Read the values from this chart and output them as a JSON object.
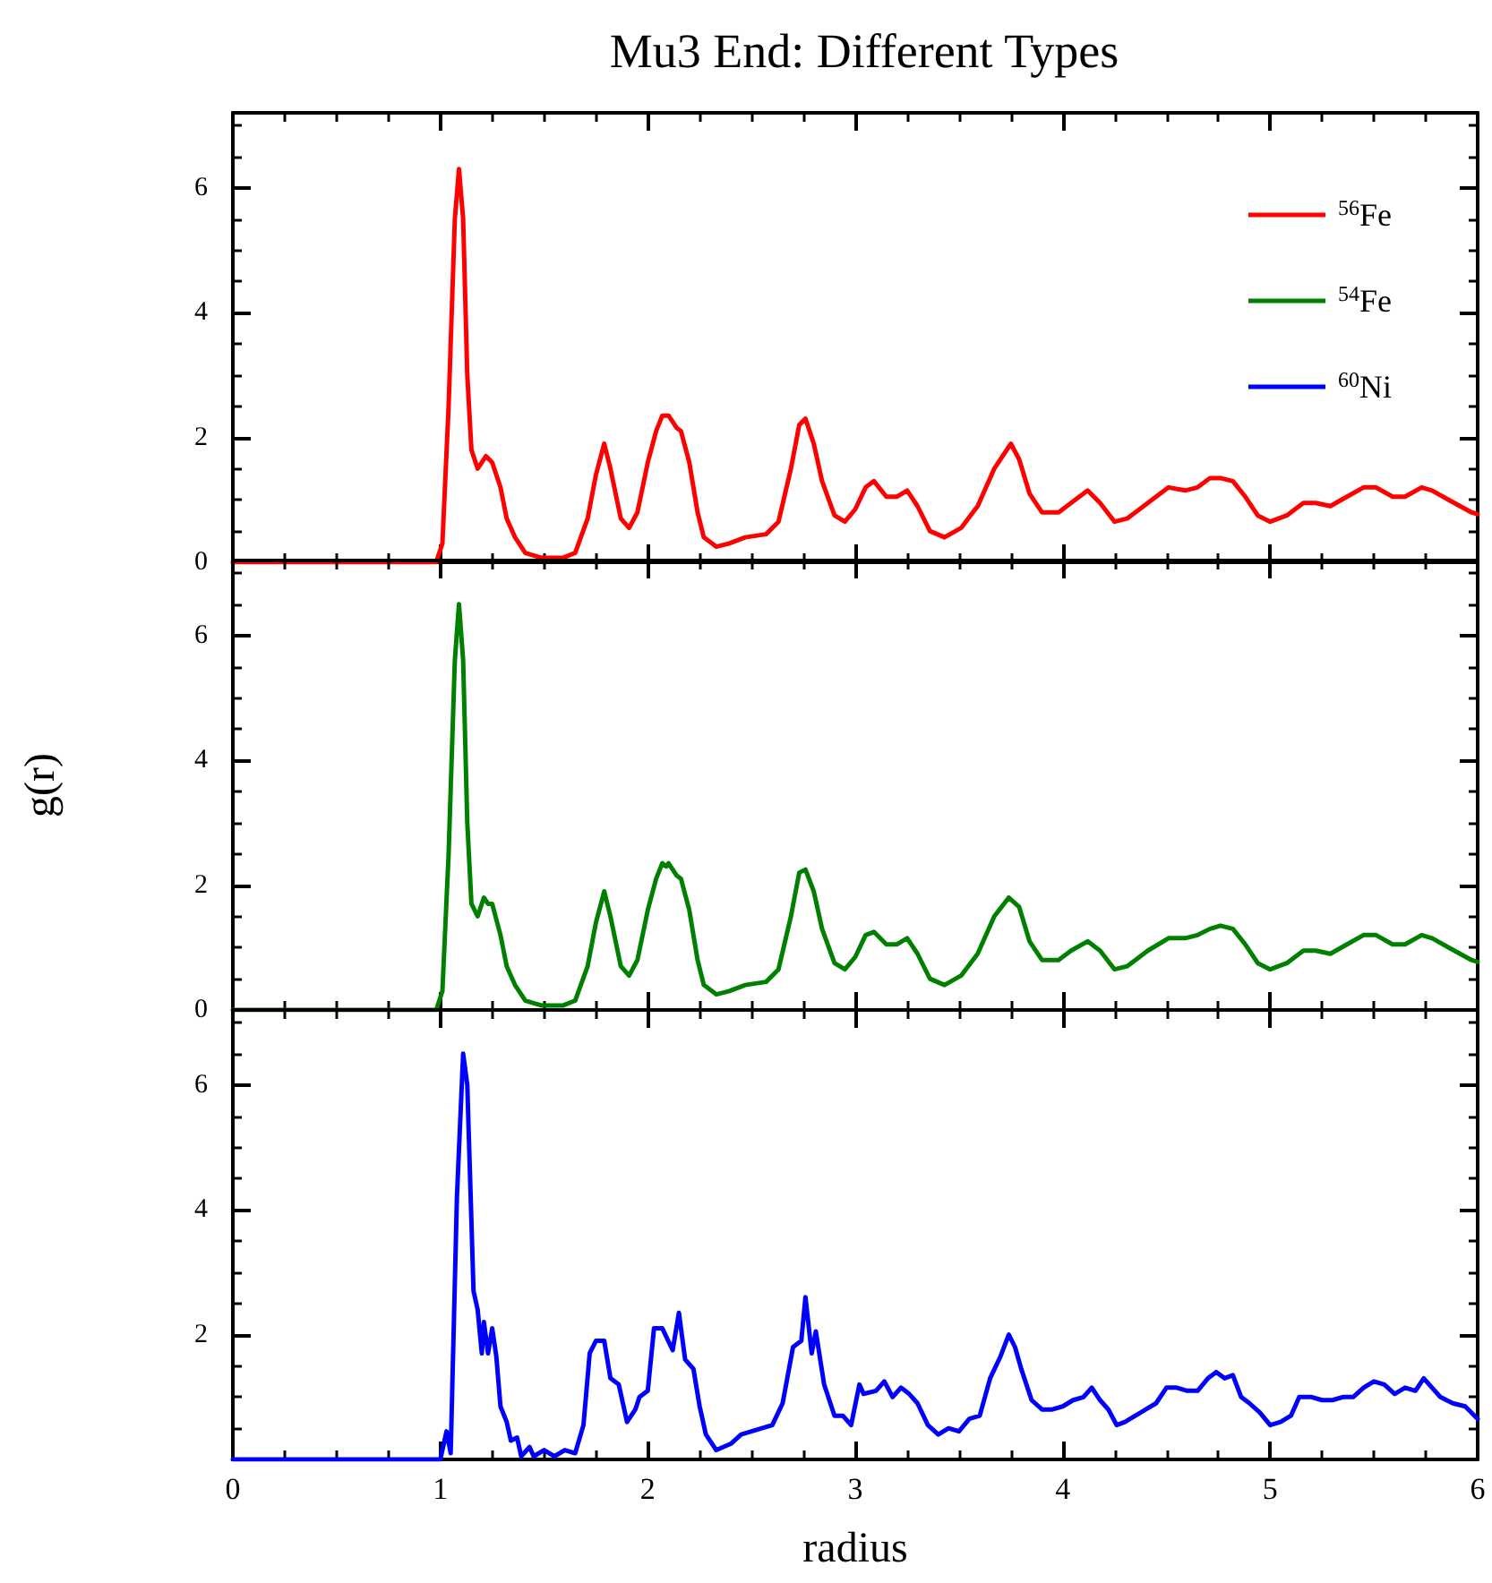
{
  "chart_data": [
    {
      "type": "line",
      "title": "Mu3 End: Different Types",
      "legend": "top right",
      "tick_labels": "y",
      "xlim": [
        0,
        6
      ],
      "xticks": [
        0,
        1,
        2,
        3,
        4,
        5,
        6
      ],
      "ylim": [
        0,
        7.2
      ],
      "yticks": [
        0,
        2,
        4,
        6
      ],
      "grid": false,
      "line_style": "solid",
      "marker": "none",
      "series": [
        {
          "name": "$^{56}$Fe",
          "color": "#ff0000",
          "x": [
            0,
            0.98,
            1.01,
            1.04,
            1.07,
            1.09,
            1.11,
            1.13,
            1.15,
            1.18,
            1.22,
            1.25,
            1.29,
            1.32,
            1.36,
            1.41,
            1.49,
            1.59,
            1.65,
            1.71,
            1.75,
            1.79,
            1.82,
            1.87,
            1.91,
            1.95,
            2.0,
            2.04,
            2.07,
            2.1,
            2.14,
            2.16,
            2.2,
            2.24,
            2.27,
            2.33,
            2.39,
            2.47,
            2.57,
            2.63,
            2.69,
            2.73,
            2.76,
            2.8,
            2.84,
            2.9,
            2.95,
            3.0,
            3.05,
            3.09,
            3.15,
            3.2,
            3.25,
            3.3,
            3.36,
            3.43,
            3.51,
            3.59,
            3.67,
            3.75,
            3.79,
            3.84,
            3.9,
            3.98,
            4.04,
            4.12,
            4.18,
            4.25,
            4.31,
            4.41,
            4.51,
            4.59,
            4.65,
            4.71,
            4.76,
            4.82,
            4.88,
            4.94,
            5.0,
            5.08,
            5.16,
            5.22,
            5.29,
            5.37,
            5.45,
            5.51,
            5.59,
            5.65,
            5.73,
            5.78,
            5.86,
            5.97,
            6.0
          ],
          "values": [
            0,
            0,
            0.3,
            2.5,
            5.5,
            6.3,
            5.5,
            3,
            1.8,
            1.5,
            1.7,
            1.6,
            1.2,
            0.7,
            0.4,
            0.15,
            0.07,
            0.07,
            0.15,
            0.7,
            1.4,
            1.9,
            1.5,
            0.7,
            0.55,
            0.8,
            1.6,
            2.1,
            2.35,
            2.35,
            2.15,
            2.1,
            1.6,
            0.8,
            0.4,
            0.25,
            0.3,
            0.4,
            0.45,
            0.65,
            1.5,
            2.2,
            2.3,
            1.9,
            1.3,
            0.75,
            0.65,
            0.85,
            1.2,
            1.3,
            1.05,
            1.05,
            1.15,
            0.9,
            0.5,
            0.4,
            0.55,
            0.9,
            1.5,
            1.9,
            1.65,
            1.1,
            0.8,
            0.8,
            0.95,
            1.15,
            0.95,
            0.65,
            0.7,
            0.95,
            1.2,
            1.15,
            1.2,
            1.35,
            1.35,
            1.3,
            1.05,
            0.75,
            0.65,
            0.75,
            0.95,
            0.95,
            0.9,
            1.05,
            1.2,
            1.2,
            1.05,
            1.05,
            1.2,
            1.15,
            1.0,
            0.8,
            0.77
          ]
        }
      ]
    },
    {
      "type": "line",
      "ylabel": "g(r)",
      "legend": false,
      "tick_labels": "y",
      "xlim": [
        0,
        6
      ],
      "xticks": [
        0,
        1,
        2,
        3,
        4,
        5,
        6
      ],
      "ylim": [
        0,
        7.2
      ],
      "yticks": [
        0,
        2,
        4,
        6
      ],
      "grid": false,
      "line_style": "solid",
      "marker": "none",
      "series": [
        {
          "name": "$^{54}$Fe",
          "color": "#008000",
          "x": [
            0,
            0.98,
            1.01,
            1.04,
            1.07,
            1.09,
            1.11,
            1.13,
            1.15,
            1.18,
            1.21,
            1.23,
            1.25,
            1.29,
            1.32,
            1.36,
            1.41,
            1.49,
            1.59,
            1.65,
            1.71,
            1.75,
            1.79,
            1.82,
            1.87,
            1.91,
            1.95,
            2.0,
            2.04,
            2.07,
            2.09,
            2.1,
            2.14,
            2.16,
            2.2,
            2.24,
            2.27,
            2.33,
            2.39,
            2.47,
            2.57,
            2.63,
            2.69,
            2.73,
            2.76,
            2.8,
            2.84,
            2.9,
            2.95,
            3.0,
            3.05,
            3.09,
            3.15,
            3.2,
            3.25,
            3.3,
            3.36,
            3.43,
            3.51,
            3.59,
            3.67,
            3.74,
            3.79,
            3.84,
            3.9,
            3.98,
            4.04,
            4.12,
            4.18,
            4.25,
            4.31,
            4.41,
            4.51,
            4.59,
            4.65,
            4.71,
            4.76,
            4.82,
            4.88,
            4.94,
            5.0,
            5.08,
            5.16,
            5.22,
            5.29,
            5.37,
            5.45,
            5.51,
            5.59,
            5.65,
            5.73,
            5.78,
            5.86,
            5.97,
            6.0
          ],
          "values": [
            0,
            0,
            0.3,
            2.5,
            5.6,
            6.5,
            5.6,
            3,
            1.7,
            1.5,
            1.8,
            1.7,
            1.7,
            1.2,
            0.7,
            0.4,
            0.15,
            0.07,
            0.07,
            0.15,
            0.7,
            1.4,
            1.9,
            1.5,
            0.7,
            0.55,
            0.8,
            1.6,
            2.1,
            2.35,
            2.3,
            2.35,
            2.15,
            2.1,
            1.6,
            0.8,
            0.4,
            0.25,
            0.3,
            0.4,
            0.45,
            0.65,
            1.5,
            2.2,
            2.25,
            1.9,
            1.3,
            0.75,
            0.65,
            0.85,
            1.2,
            1.25,
            1.05,
            1.05,
            1.15,
            0.9,
            0.5,
            0.4,
            0.55,
            0.9,
            1.5,
            1.8,
            1.65,
            1.1,
            0.8,
            0.8,
            0.95,
            1.1,
            0.95,
            0.65,
            0.7,
            0.95,
            1.15,
            1.15,
            1.2,
            1.3,
            1.35,
            1.3,
            1.05,
            0.75,
            0.65,
            0.75,
            0.95,
            0.95,
            0.9,
            1.05,
            1.2,
            1.2,
            1.05,
            1.05,
            1.2,
            1.15,
            1.0,
            0.8,
            0.77
          ]
        }
      ]
    },
    {
      "type": "line",
      "xlabel": "radius",
      "legend": false,
      "xlim": [
        0,
        6
      ],
      "xticks": [
        0,
        1,
        2,
        3,
        4,
        5,
        6
      ],
      "ylim": [
        0,
        7.2
      ],
      "yticks": [
        {
          "value": 0,
          "label": null
        },
        2,
        4,
        6
      ],
      "grid": false,
      "line_style": "solid",
      "marker": "none",
      "series": [
        {
          "name": "$^{60}$Ni",
          "color": "#0000ff",
          "x": [
            0,
            1.0,
            1.03,
            1.05,
            1.08,
            1.11,
            1.13,
            1.16,
            1.18,
            1.2,
            1.21,
            1.23,
            1.25,
            1.27,
            1.29,
            1.32,
            1.34,
            1.37,
            1.39,
            1.43,
            1.45,
            1.5,
            1.55,
            1.6,
            1.65,
            1.69,
            1.72,
            1.75,
            1.79,
            1.82,
            1.86,
            1.9,
            1.94,
            1.96,
            2.0,
            2.03,
            2.07,
            2.12,
            2.15,
            2.18,
            2.22,
            2.25,
            2.28,
            2.33,
            2.4,
            2.45,
            2.5,
            2.55,
            2.6,
            2.65,
            2.7,
            2.74,
            2.76,
            2.79,
            2.81,
            2.85,
            2.9,
            2.94,
            2.98,
            3.02,
            3.04,
            3.1,
            3.14,
            3.18,
            3.22,
            3.26,
            3.3,
            3.35,
            3.4,
            3.45,
            3.5,
            3.55,
            3.6,
            3.65,
            3.7,
            3.74,
            3.77,
            3.8,
            3.85,
            3.9,
            3.95,
            4.0,
            4.05,
            4.1,
            4.14,
            4.18,
            4.22,
            4.26,
            4.3,
            4.35,
            4.4,
            4.45,
            4.5,
            4.55,
            4.6,
            4.65,
            4.7,
            4.74,
            4.78,
            4.82,
            4.86,
            4.9,
            4.95,
            5.0,
            5.05,
            5.1,
            5.14,
            5.2,
            5.25,
            5.3,
            5.35,
            5.4,
            5.45,
            5.5,
            5.55,
            5.6,
            5.65,
            5.7,
            5.74,
            5.78,
            5.82,
            5.88,
            5.94,
            6.0
          ],
          "values": [
            0,
            0,
            0.45,
            0.1,
            4.2,
            6.5,
            6.0,
            2.7,
            2.4,
            1.7,
            2.2,
            1.7,
            2.1,
            1.65,
            0.85,
            0.6,
            0.3,
            0.35,
            0.05,
            0.2,
            0.05,
            0.15,
            0.05,
            0.15,
            0.1,
            0.55,
            1.7,
            1.9,
            1.9,
            1.3,
            1.2,
            0.6,
            0.8,
            1.0,
            1.1,
            2.1,
            2.1,
            1.75,
            2.35,
            1.6,
            1.45,
            0.85,
            0.4,
            0.15,
            0.25,
            0.4,
            0.45,
            0.5,
            0.55,
            0.9,
            1.8,
            1.9,
            2.6,
            1.7,
            2.05,
            1.2,
            0.7,
            0.7,
            0.55,
            1.2,
            1.05,
            1.1,
            1.25,
            1.0,
            1.15,
            1.05,
            0.9,
            0.55,
            0.4,
            0.5,
            0.45,
            0.65,
            0.7,
            1.3,
            1.65,
            2.0,
            1.8,
            1.45,
            0.95,
            0.8,
            0.8,
            0.85,
            0.95,
            1.0,
            1.15,
            0.95,
            0.8,
            0.55,
            0.6,
            0.7,
            0.8,
            0.9,
            1.15,
            1.15,
            1.1,
            1.1,
            1.3,
            1.4,
            1.3,
            1.35,
            1.0,
            0.9,
            0.75,
            0.55,
            0.6,
            0.7,
            1.0,
            1.0,
            0.95,
            0.95,
            1.0,
            1.0,
            1.15,
            1.25,
            1.2,
            1.05,
            1.15,
            1.1,
            1.3,
            1.15,
            1.0,
            0.9,
            0.85,
            0.65
          ]
        }
      ]
    }
  ]
}
